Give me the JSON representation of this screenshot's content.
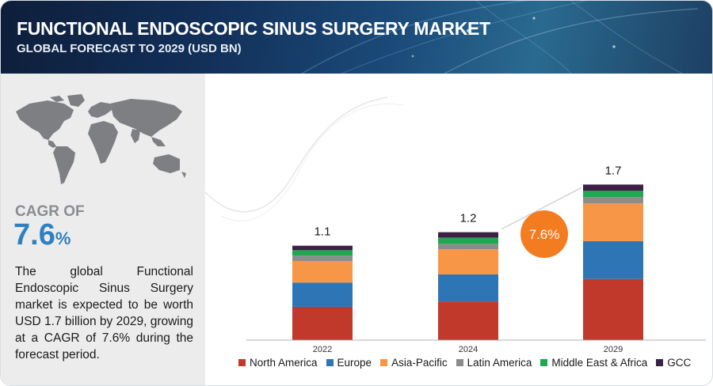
{
  "header": {
    "title": "FUNCTIONAL ENDOSCOPIC SINUS SURGERY MARKET",
    "subtitle": "GLOBAL FORECAST TO 2029 (USD BN)"
  },
  "left_panel": {
    "cagr_label": "CAGR OF",
    "cagr_value": "7.6",
    "cagr_unit": "%",
    "description": "The global Functional Endoscopic Sinus Surgery market is expected to be worth USD 1.7 billion by 2029, growing at a CAGR of 7.6% during the forecast period."
  },
  "colors": {
    "header_bg": "#12305a",
    "accent_blue": "#2f80c2",
    "cagr_bubble": "#f47c20"
  },
  "chart_data": {
    "type": "bar",
    "stacked": true,
    "categories": [
      "2022",
      "2024",
      "2029"
    ],
    "totals": [
      "1.1",
      "1.2",
      "1.7"
    ],
    "cagr_badge": "7.6%",
    "ylim": [
      0,
      1.9
    ],
    "grid": false,
    "legend_position": "bottom",
    "series": [
      {
        "name": "North America",
        "color": "#c0392b",
        "values": [
          0.37,
          0.43,
          0.68
        ]
      },
      {
        "name": "Europe",
        "color": "#2e75b6",
        "values": [
          0.27,
          0.3,
          0.42
        ]
      },
      {
        "name": "Asia-Pacific",
        "color": "#f79646",
        "values": [
          0.24,
          0.28,
          0.42
        ]
      },
      {
        "name": "Latin America",
        "color": "#8c8c8c",
        "values": [
          0.06,
          0.06,
          0.07
        ]
      },
      {
        "name": "Middle East & Africa",
        "color": "#1fa84f",
        "values": [
          0.06,
          0.07,
          0.07
        ]
      },
      {
        "name": "GCC",
        "color": "#3d2046",
        "values": [
          0.05,
          0.06,
          0.07
        ]
      }
    ]
  }
}
